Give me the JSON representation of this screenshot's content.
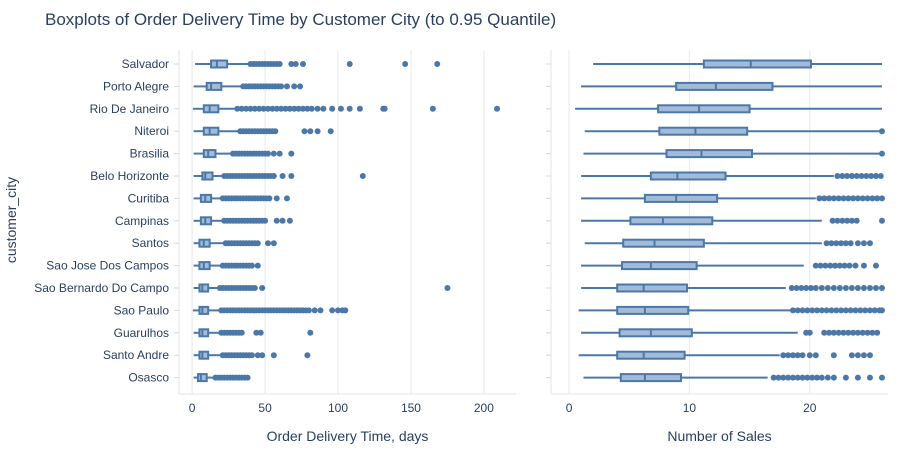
{
  "chart_data": {
    "type": "boxplot",
    "title": "Boxplots of Order Delivery Time by Customer City (to 0.95 Quantile)",
    "ylabel": "customer_city",
    "categories": [
      "Salvador",
      "Porto Alegre",
      "Rio De Janeiro",
      "Niteroi",
      "Brasilia",
      "Belo Horizonte",
      "Curitiba",
      "Campinas",
      "Santos",
      "Sao Jose Dos Campos",
      "Sao Bernardo Do Campo",
      "Sao Paulo",
      "Guarulhos",
      "Santo Andre",
      "Osasco"
    ],
    "colors": {
      "box_fill": "#a3bbd8",
      "box_line": "#4c78a8",
      "grid": "#e6e9ef",
      "axis_line": "#e2e5ea",
      "text": "#2a3f5f"
    },
    "panels": [
      {
        "xlabel": "Order Delivery Time, days",
        "xlim": [
          -9,
          222
        ],
        "xticks": [
          0,
          50,
          100,
          150,
          200
        ],
        "boxes": [
          {
            "min": 2,
            "q1": 13,
            "median": 17,
            "q3": 24,
            "max": 40,
            "outliers": [
              40,
              42,
              44,
              46,
              48,
              50,
              52,
              54,
              56,
              58,
              60,
              68,
              71,
              76,
              108,
              146,
              168
            ]
          },
          {
            "min": 1,
            "q1": 10,
            "median": 13,
            "q3": 20,
            "max": 35,
            "outliers": [
              35,
              37,
              39,
              41,
              43,
              45,
              47,
              49,
              51,
              53,
              55,
              57,
              59,
              61,
              65,
              70,
              74
            ]
          },
          {
            "min": 0.5,
            "q1": 8,
            "median": 12,
            "q3": 18,
            "max": 30,
            "outliers": [
              31,
              34,
              37,
              40,
              43,
              46,
              49,
              52,
              55,
              58,
              61,
              64,
              67,
              70,
              73,
              76,
              79,
              82,
              86,
              90,
              96,
              102,
              108,
              115,
              131,
              132,
              165,
              209
            ]
          },
          {
            "min": 1,
            "q1": 8,
            "median": 12,
            "q3": 18,
            "max": 32,
            "outliers": [
              33,
              35,
              37,
              39,
              41,
              43,
              45,
              47,
              49,
              51,
              53,
              55,
              57,
              77,
              81,
              86,
              95
            ]
          },
          {
            "min": 1,
            "q1": 8,
            "median": 11,
            "q3": 16,
            "max": 28,
            "outliers": [
              28,
              30,
              32,
              34,
              36,
              38,
              40,
              42,
              44,
              46,
              48,
              50,
              52,
              56,
              60,
              68
            ]
          },
          {
            "min": 1,
            "q1": 7,
            "median": 9,
            "q3": 14,
            "max": 22,
            "outliers": [
              22,
              24,
              26,
              28,
              30,
              32,
              34,
              36,
              38,
              40,
              42,
              44,
              46,
              48,
              50,
              52,
              54,
              56,
              62,
              68,
              117
            ]
          },
          {
            "min": 1,
            "q1": 6,
            "median": 9,
            "q3": 13,
            "max": 21,
            "outliers": [
              21,
              23,
              25,
              27,
              29,
              31,
              33,
              35,
              37,
              39,
              41,
              43,
              45,
              47,
              49,
              51,
              53,
              58,
              65
            ]
          },
          {
            "min": 1,
            "q1": 6,
            "median": 9,
            "q3": 13,
            "max": 22,
            "outliers": [
              22,
              24,
              26,
              28,
              30,
              32,
              34,
              36,
              38,
              40,
              42,
              44,
              46,
              48,
              50,
              58,
              62,
              67
            ]
          },
          {
            "min": 1,
            "q1": 5,
            "median": 8,
            "q3": 12,
            "max": 22,
            "outliers": [
              23,
              25,
              27,
              29,
              31,
              33,
              35,
              37,
              39,
              41,
              43,
              45,
              52,
              56
            ]
          },
          {
            "min": 1,
            "q1": 5,
            "median": 8,
            "q3": 12,
            "max": 20,
            "outliers": [
              21,
              23,
              25,
              27,
              29,
              31,
              33,
              35,
              37,
              39,
              41,
              45
            ]
          },
          {
            "min": 1,
            "q1": 5,
            "median": 7,
            "q3": 11,
            "max": 19,
            "outliers": [
              19,
              21,
              23,
              25,
              27,
              29,
              31,
              33,
              35,
              37,
              39,
              41,
              43,
              48,
              175
            ]
          },
          {
            "min": 0.5,
            "q1": 5,
            "median": 7,
            "q3": 11,
            "max": 20,
            "outliers": [
              20,
              22,
              24,
              26,
              28,
              30,
              32,
              34,
              36,
              38,
              40,
              42,
              44,
              46,
              48,
              50,
              52,
              54,
              56,
              58,
              60,
              62,
              64,
              66,
              68,
              70,
              72,
              74,
              76,
              78,
              80,
              84,
              88,
              96,
              100,
              103,
              105
            ]
          },
          {
            "min": 1,
            "q1": 5,
            "median": 7,
            "q3": 11,
            "max": 20,
            "outliers": [
              20,
              22,
              24,
              26,
              28,
              30,
              32,
              34,
              44,
              47,
              81
            ]
          },
          {
            "min": 1,
            "q1": 5,
            "median": 7,
            "q3": 11,
            "max": 20,
            "outliers": [
              21,
              23,
              25,
              27,
              29,
              31,
              33,
              35,
              37,
              39,
              41,
              45,
              48,
              56,
              79
            ]
          },
          {
            "min": 1,
            "q1": 4,
            "median": 6,
            "q3": 10,
            "max": 16,
            "outliers": [
              16,
              18,
              20,
              22,
              24,
              26,
              28,
              30,
              32,
              34,
              36,
              38
            ]
          }
        ]
      },
      {
        "xlabel": "Number of Sales",
        "xlim": [
          -1.5,
          26.5
        ],
        "xticks": [
          0,
          10,
          20
        ],
        "boxes": [
          {
            "min": 2,
            "q1": 11.2,
            "median": 15.1,
            "q3": 20.1,
            "max": 26.0,
            "outliers": []
          },
          {
            "min": 1,
            "q1": 8.9,
            "median": 12.2,
            "q3": 16.9,
            "max": 26.0,
            "outliers": []
          },
          {
            "min": 0.5,
            "q1": 7.4,
            "median": 10.8,
            "q3": 15.0,
            "max": 26.0,
            "outliers": []
          },
          {
            "min": 1.3,
            "q1": 7.5,
            "median": 10.5,
            "q3": 14.8,
            "max": 26.0,
            "outliers": [
              26.0
            ]
          },
          {
            "min": 1.2,
            "q1": 8.1,
            "median": 11.0,
            "q3": 15.2,
            "max": 26.0,
            "outliers": [
              26.0
            ]
          },
          {
            "min": 1,
            "q1": 6.8,
            "median": 9.0,
            "q3": 13.0,
            "max": 22.0,
            "outliers": [
              22.3,
              22.7,
              23.1,
              23.5,
              23.9,
              24.3,
              24.7,
              25.1,
              25.5,
              25.9
            ]
          },
          {
            "min": 1,
            "q1": 6.3,
            "median": 8.9,
            "q3": 12.3,
            "max": 20.5,
            "outliers": [
              20.8,
              21.2,
              21.6,
              22.0,
              22.4,
              22.8,
              23.2,
              23.6,
              24.0,
              24.4,
              24.8,
              25.2,
              25.6,
              26.0
            ]
          },
          {
            "min": 1,
            "q1": 5.1,
            "median": 7.8,
            "q3": 11.9,
            "max": 21.0,
            "outliers": [
              21.9,
              22.3,
              22.7,
              23.1,
              23.5,
              23.9,
              26.0
            ]
          },
          {
            "min": 1.3,
            "q1": 4.5,
            "median": 7.1,
            "q3": 11.2,
            "max": 21.0,
            "outliers": [
              21.4,
              21.8,
              22.2,
              22.6,
              23.0,
              23.4,
              24.0,
              24.5,
              25.0
            ]
          },
          {
            "min": 1,
            "q1": 4.4,
            "median": 6.8,
            "q3": 10.6,
            "max": 19.5,
            "outliers": [
              20.5,
              20.9,
              21.3,
              21.7,
              22.1,
              22.5,
              22.9,
              23.3,
              23.8,
              24.5,
              25.5
            ]
          },
          {
            "min": 1,
            "q1": 4.0,
            "median": 6.2,
            "q3": 9.8,
            "max": 18.0,
            "outliers": [
              18.5,
              18.9,
              19.3,
              19.7,
              20.1,
              20.5,
              21.0,
              21.5,
              22.0,
              22.5,
              23.0,
              23.5,
              24.0,
              24.5,
              25.0,
              25.5,
              26.0
            ]
          },
          {
            "min": 0.8,
            "q1": 4.0,
            "median": 6.3,
            "q3": 9.9,
            "max": 18.5,
            "outliers": [
              18.6,
              19.0,
              19.4,
              19.8,
              20.2,
              20.6,
              21.0,
              21.4,
              21.8,
              22.2,
              22.6,
              23.0,
              23.4,
              23.8,
              24.2,
              24.6,
              25.0,
              25.4,
              25.8,
              26.0
            ]
          },
          {
            "min": 1,
            "q1": 4.2,
            "median": 6.8,
            "q3": 10.2,
            "max": 19.0,
            "outliers": [
              19.7,
              20.0,
              21.2,
              21.6,
              22.0,
              22.4,
              22.8,
              23.2,
              23.6,
              24.0,
              24.4,
              24.8,
              25.2,
              25.6
            ]
          },
          {
            "min": 0.8,
            "q1": 4.0,
            "median": 6.2,
            "q3": 9.6,
            "max": 17.5,
            "outliers": [
              17.8,
              18.2,
              18.6,
              19.0,
              19.4,
              20.0,
              20.5,
              22.0,
              23.5,
              24.0,
              24.5,
              25.0
            ]
          },
          {
            "min": 1.2,
            "q1": 4.3,
            "median": 6.3,
            "q3": 9.3,
            "max": 16.5,
            "outliers": [
              17.0,
              17.4,
              17.8,
              18.2,
              18.6,
              19.0,
              19.4,
              19.8,
              20.2,
              20.6,
              21.0,
              21.5,
              22.0,
              23.0,
              24.0,
              25.0,
              26.0
            ]
          }
        ]
      }
    ]
  }
}
